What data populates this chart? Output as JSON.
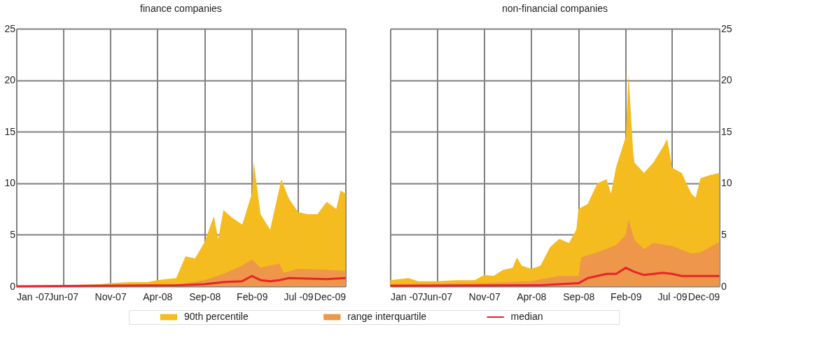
{
  "chart_data": [
    {
      "type": "area",
      "title": "finance companies",
      "legend": "bottom",
      "grid": true,
      "tick_labels": true,
      "xlim": [
        "2007-01-01",
        "2009-12-01"
      ],
      "ylim": [
        0,
        25
      ],
      "yticks": [
        0,
        5,
        10,
        15,
        20,
        25
      ],
      "xticks": [
        {
          "value": "2007-01-01",
          "label": "Jan -07"
        },
        {
          "value": "2007-06-01",
          "label": "Jun-07"
        },
        {
          "value": "2007-11-01",
          "label": "Nov-07"
        },
        {
          "value": "2008-04-01",
          "label": "Apr-08"
        },
        {
          "value": "2008-09-01",
          "label": "Sep-08"
        },
        {
          "value": "2009-02-01",
          "label": "Feb-09"
        },
        {
          "value": "2009-07-01",
          "label": "Jul -09"
        },
        {
          "value": "2009-12-01",
          "label": "Dec-09"
        }
      ],
      "series": [
        {
          "name": "90th percentile",
          "color": "#f4bc1f",
          "x": [
            "2007-01-01",
            "2007-04-01",
            "2007-06-01",
            "2007-08-01",
            "2007-10-01",
            "2007-11-01",
            "2008-01-01",
            "2008-03-01",
            "2008-04-01",
            "2008-05-01",
            "2008-06-01",
            "2008-07-01",
            "2008-08-01",
            "2008-09-01",
            "2008-10-01",
            "2008-10-15",
            "2008-11-01",
            "2008-12-01",
            "2009-01-01",
            "2009-02-01",
            "2009-02-07",
            "2009-03-01",
            "2009-04-01",
            "2009-05-01",
            "2009-05-07",
            "2009-06-01",
            "2009-07-01",
            "2009-08-01",
            "2009-09-01",
            "2009-10-01",
            "2009-11-01",
            "2009-11-15",
            "2009-12-01"
          ],
          "values": [
            0.0,
            0.05,
            0.05,
            0.15,
            0.2,
            0.3,
            0.4,
            0.4,
            0.6,
            0.7,
            0.8,
            2.9,
            2.7,
            4.3,
            6.8,
            4.6,
            7.4,
            6.6,
            6.0,
            9.0,
            12.1,
            7.0,
            5.5,
            9.5,
            10.4,
            8.5,
            7.2,
            7.0,
            7.0,
            8.2,
            7.5,
            9.3,
            9.0
          ]
        },
        {
          "name": "range interquartile",
          "color": "#ee9649",
          "x": [
            "2007-01-01",
            "2008-06-01",
            "2008-07-01",
            "2008-09-01",
            "2008-11-01",
            "2009-01-01",
            "2009-02-01",
            "2009-03-01",
            "2009-05-01",
            "2009-05-15",
            "2009-07-01",
            "2009-10-01",
            "2009-12-01"
          ],
          "values": [
            0.05,
            0.1,
            0.3,
            0.6,
            1.2,
            2.0,
            2.6,
            1.8,
            2.2,
            1.3,
            1.7,
            1.6,
            1.5
          ]
        },
        {
          "name": "median",
          "type": "line",
          "color": "#e8242a",
          "x": [
            "2007-01-01",
            "2007-09-01",
            "2008-06-01",
            "2008-09-01",
            "2008-11-01",
            "2009-01-01",
            "2009-02-01",
            "2009-03-01",
            "2009-04-01",
            "2009-05-01",
            "2009-06-01",
            "2009-08-01",
            "2009-10-01",
            "2009-12-01"
          ],
          "values": [
            0.0,
            0.05,
            0.1,
            0.2,
            0.4,
            0.5,
            1.0,
            0.6,
            0.5,
            0.6,
            0.8,
            0.75,
            0.7,
            0.8
          ]
        }
      ]
    },
    {
      "type": "area",
      "title": "non-financial companies",
      "grid": true,
      "tick_labels": true,
      "xlim": [
        "2007-01-01",
        "2009-12-01"
      ],
      "ylim": [
        0,
        25
      ],
      "yticks": [
        0,
        5,
        10,
        15,
        20,
        25
      ],
      "xticks": [
        {
          "value": "2007-01-01",
          "label": "Jan -07"
        },
        {
          "value": "2007-06-01",
          "label": "Jun-07"
        },
        {
          "value": "2007-11-01",
          "label": "Nov-07"
        },
        {
          "value": "2008-04-01",
          "label": "Apr-08"
        },
        {
          "value": "2008-09-01",
          "label": "Sep-08"
        },
        {
          "value": "2009-02-01",
          "label": "Feb-09"
        },
        {
          "value": "2009-07-01",
          "label": "Jul -09"
        },
        {
          "value": "2009-12-01",
          "label": "Dec-09"
        }
      ],
      "series": [
        {
          "color": "#f4bc1f",
          "x": [
            "2007-01-01",
            "2007-03-01",
            "2007-04-01",
            "2007-06-01",
            "2007-08-01",
            "2007-10-01",
            "2007-11-01",
            "2007-12-01",
            "2008-01-01",
            "2008-02-01",
            "2008-02-15",
            "2008-03-01",
            "2008-04-01",
            "2008-05-01",
            "2008-06-01",
            "2008-07-01",
            "2008-08-01",
            "2008-08-25",
            "2008-09-01",
            "2008-10-01",
            "2008-11-01",
            "2008-12-01",
            "2008-12-15",
            "2009-01-01",
            "2009-02-01",
            "2009-02-10",
            "2009-02-25",
            "2009-03-01",
            "2009-04-01",
            "2009-05-01",
            "2009-06-01",
            "2009-06-15",
            "2009-07-01",
            "2009-08-01",
            "2009-09-01",
            "2009-09-15",
            "2009-10-01",
            "2009-11-01",
            "2009-12-01"
          ],
          "values": [
            0.6,
            0.8,
            0.5,
            0.5,
            0.6,
            0.6,
            1.1,
            1.0,
            1.6,
            1.8,
            2.8,
            2.0,
            1.7,
            2.0,
            3.8,
            4.6,
            4.2,
            5.5,
            7.5,
            8.0,
            10.0,
            10.4,
            9.0,
            11.6,
            14.5,
            20.6,
            13.0,
            12.0,
            11.0,
            12.0,
            13.5,
            14.3,
            11.5,
            11.0,
            9.0,
            8.6,
            10.5,
            10.8,
            11.0
          ]
        },
        {
          "color": "#ee9649",
          "x": [
            "2007-01-01",
            "2007-11-01",
            "2008-04-01",
            "2008-07-01",
            "2008-09-01",
            "2008-09-10",
            "2008-11-01",
            "2009-01-01",
            "2009-02-01",
            "2009-02-10",
            "2009-03-01",
            "2009-04-01",
            "2009-05-01",
            "2009-07-01",
            "2009-09-01",
            "2009-10-01",
            "2009-12-01"
          ],
          "values": [
            0.2,
            0.3,
            0.5,
            1.0,
            1.0,
            2.8,
            3.3,
            4.0,
            5.0,
            6.5,
            4.5,
            3.6,
            4.2,
            3.9,
            3.2,
            3.3,
            4.3
          ]
        },
        {
          "type": "line",
          "color": "#e8242a",
          "x": [
            "2007-01-01",
            "2008-05-01",
            "2008-07-01",
            "2008-09-01",
            "2008-10-01",
            "2008-11-01",
            "2008-12-01",
            "2009-01-01",
            "2009-02-01",
            "2009-03-01",
            "2009-04-01",
            "2009-06-01",
            "2009-07-01",
            "2009-08-01",
            "2009-10-01",
            "2009-12-01"
          ],
          "values": [
            0.05,
            0.1,
            0.2,
            0.3,
            0.8,
            1.0,
            1.2,
            1.2,
            1.8,
            1.4,
            1.1,
            1.3,
            1.2,
            1.0,
            1.0,
            1.0
          ]
        }
      ]
    }
  ]
}
